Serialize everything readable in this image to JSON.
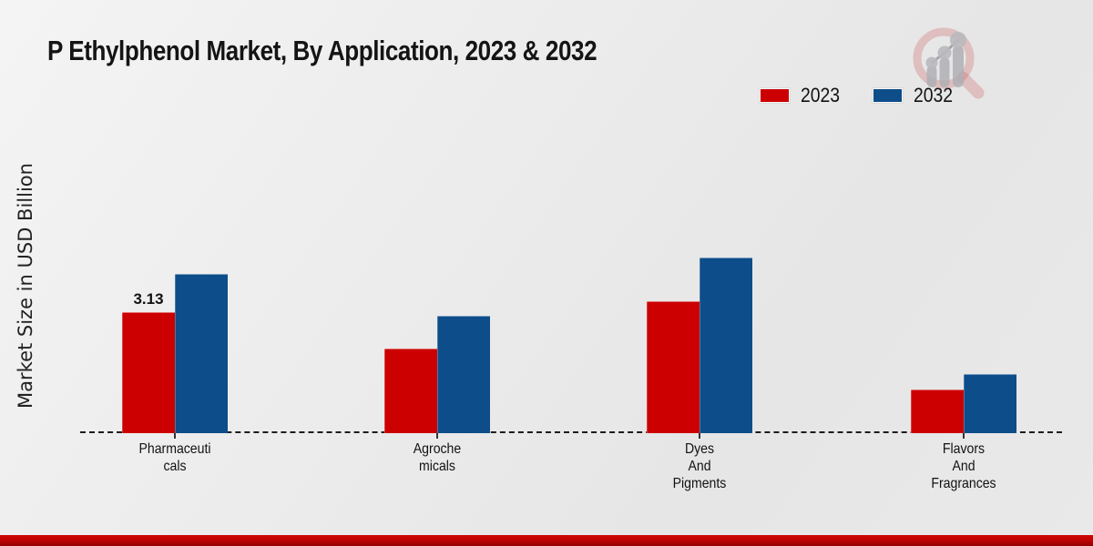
{
  "title": "P Ethylphenol Market, By Application, 2023 & 2032",
  "y_axis_label": "Market Size in USD Billion",
  "legend": {
    "items": [
      {
        "label": "2023",
        "color": "#cc0000"
      },
      {
        "label": "2032",
        "color": "#0d4d8a"
      }
    ]
  },
  "icons": {
    "logo": "magnifier-growth-chart-icon"
  },
  "colors": {
    "bar_2023": "#cc0000",
    "bar_2032": "#0d4d8a",
    "bottom_strip": "#bb0404",
    "background": "#ebebeb",
    "baseline": "#1c1c1c"
  },
  "chart_data": {
    "type": "bar",
    "title": "P Ethylphenol Market, By Application, 2023 & 2032",
    "xlabel": "",
    "ylabel": "Market Size in USD Billion",
    "categories": [
      "Pharmaceuticals",
      "Agrochemicals",
      "Dyes And Pigments",
      "Flavors And Fragrances"
    ],
    "category_label_lines": [
      [
        "Pharmaceuti",
        "cals"
      ],
      [
        "Agroche",
        "micals"
      ],
      [
        "Dyes",
        "And",
        "Pigments"
      ],
      [
        "Flavors",
        "And",
        "Fragrances"
      ]
    ],
    "series": [
      {
        "name": "2023",
        "color": "#cc0000",
        "values": [
          3.13,
          2.19,
          3.41,
          1.13
        ]
      },
      {
        "name": "2032",
        "color": "#0d4d8a",
        "values": [
          4.12,
          3.03,
          4.54,
          1.53
        ]
      }
    ],
    "ylim": [
      0,
      5
    ],
    "grid": false,
    "axis_line_style": "dashed",
    "legend_position": "top-right",
    "data_labels": [
      {
        "series": "2023",
        "category": "Pharmaceuticals",
        "value": "3.13"
      }
    ]
  }
}
